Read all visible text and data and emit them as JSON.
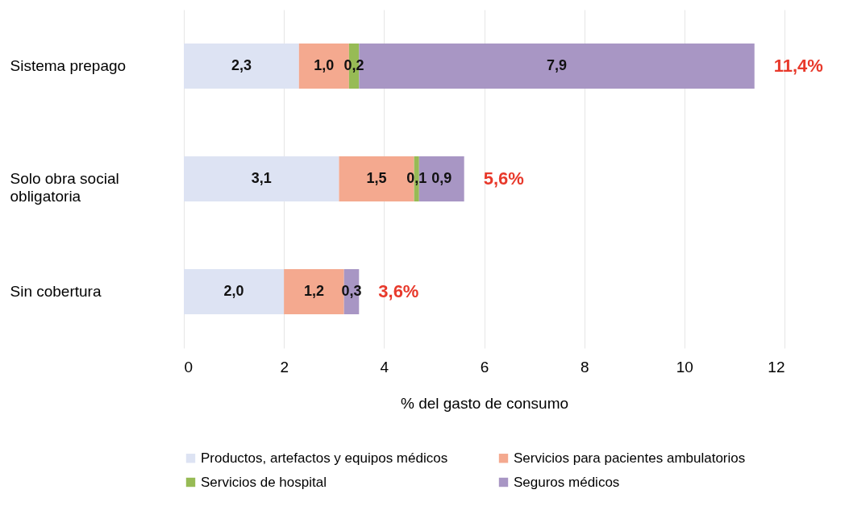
{
  "chart_data": {
    "type": "bar",
    "orientation": "horizontal",
    "stacked": true,
    "xlabel": "% del gasto de consumo",
    "categories": [
      "Sistema prepago",
      "Solo obra social obligatoria",
      "Sin cobertura"
    ],
    "series": [
      {
        "name": "Productos, artefactos y equipos médicos",
        "color": "#dde3f3",
        "values": [
          2.3,
          3.1,
          2.0
        ],
        "value_labels": [
          "2,3",
          "3,1",
          "2,0"
        ]
      },
      {
        "name": "Servicios para pacientes ambulatorios",
        "color": "#f4a98f",
        "values": [
          1.0,
          1.5,
          1.2
        ],
        "value_labels": [
          "1,0",
          "1,5",
          "1,2"
        ]
      },
      {
        "name": "Servicios de hospital",
        "color": "#97bb55",
        "values": [
          0.2,
          0.1,
          null
        ],
        "value_labels": [
          "0,2",
          "0,1",
          null
        ]
      },
      {
        "name": "Seguros médicos",
        "color": "#a896c4",
        "values": [
          7.9,
          0.9,
          0.3
        ],
        "value_labels": [
          "7,9",
          "0,9",
          "0,3"
        ]
      }
    ],
    "totals": [
      "11,4%",
      "5,6%",
      "3,6%"
    ],
    "xlim": [
      0,
      12
    ],
    "xticks": [
      0,
      2,
      4,
      6,
      8,
      10,
      12
    ],
    "grid": "x",
    "legend": "bottom"
  }
}
